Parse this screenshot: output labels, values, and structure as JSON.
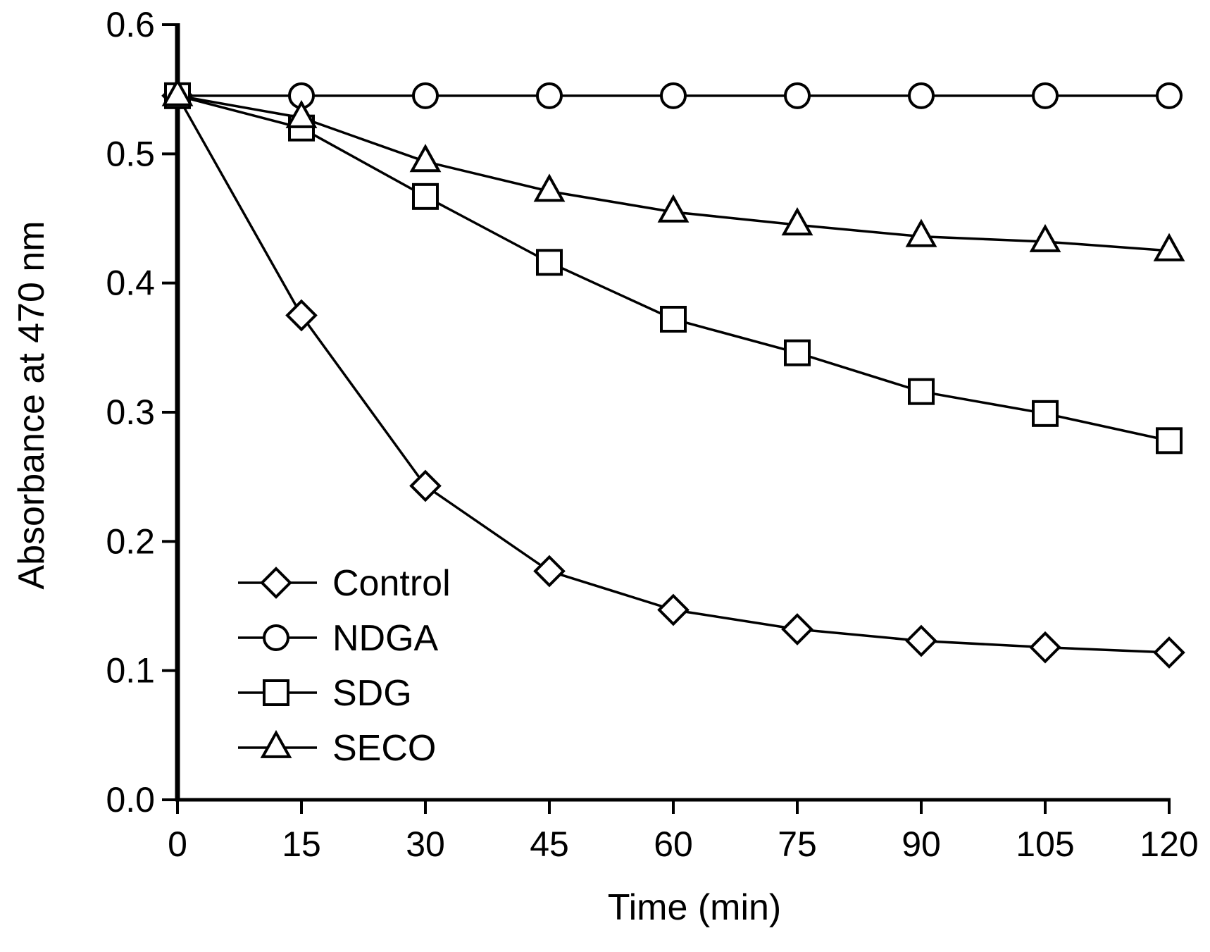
{
  "chart_data": {
    "type": "line",
    "title": "",
    "xlabel": "Time (min)",
    "ylabel": "Absorbance at 470 nm",
    "x": [
      0,
      15,
      30,
      45,
      60,
      75,
      90,
      105,
      120
    ],
    "x_tick_labels": [
      "0",
      "15",
      "30",
      "45",
      "60",
      "75",
      "90",
      "105",
      "120"
    ],
    "y_tick_labels": [
      "0.0",
      "0.1",
      "0.2",
      "0.3",
      "0.4",
      "0.5",
      "0.6"
    ],
    "xlim": [
      0,
      120
    ],
    "ylim": [
      0,
      0.6
    ],
    "grid": false,
    "legend_position": "bottom-left",
    "series": [
      {
        "name": "Control",
        "marker": "diamond",
        "values": [
          0.545,
          0.375,
          0.243,
          0.177,
          0.147,
          0.132,
          0.123,
          0.118,
          0.114
        ]
      },
      {
        "name": "NDGA",
        "marker": "circle",
        "values": [
          0.545,
          0.545,
          0.545,
          0.545,
          0.545,
          0.545,
          0.545,
          0.545,
          0.545
        ]
      },
      {
        "name": "SDG",
        "marker": "square",
        "values": [
          0.545,
          0.52,
          0.467,
          0.416,
          0.372,
          0.346,
          0.316,
          0.299,
          0.278
        ]
      },
      {
        "name": "SECO",
        "marker": "triangle",
        "values": [
          0.545,
          0.528,
          0.494,
          0.471,
          0.455,
          0.445,
          0.436,
          0.432,
          0.425
        ]
      }
    ]
  }
}
